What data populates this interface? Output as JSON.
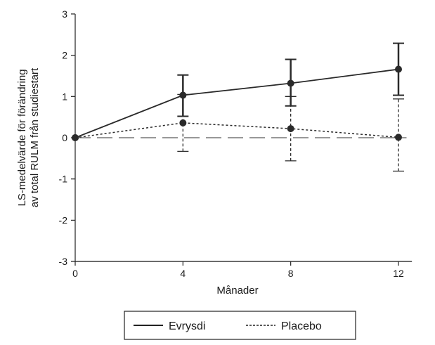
{
  "chart_data": {
    "type": "line",
    "xlabel": "Månader",
    "ylabel_lines": [
      "LS-medelvärde för förändring",
      "av total RULM från studiestart"
    ],
    "x_ticks": [
      0,
      4,
      8,
      12
    ],
    "y_ticks": [
      3,
      2,
      1,
      0,
      -1,
      -2,
      -3
    ],
    "xlim": [
      0,
      12.5
    ],
    "ylim": [
      -3,
      3
    ],
    "grid": false,
    "reference_line": 0,
    "legend_placement": "bottom",
    "series": [
      {
        "name": "Evrysdi",
        "style": "solid",
        "x": [
          0,
          4,
          8,
          12
        ],
        "y": [
          0,
          1.03,
          1.32,
          1.66
        ],
        "err_low": [
          null,
          0.52,
          0.77,
          1.03
        ],
        "err_high": [
          null,
          1.52,
          1.9,
          2.29
        ]
      },
      {
        "name": "Placebo",
        "style": "dotted",
        "x": [
          0,
          4,
          8,
          12
        ],
        "y": [
          0,
          0.36,
          0.22,
          0.01
        ],
        "err_low": [
          null,
          -0.33,
          -0.56,
          -0.81
        ],
        "err_high": [
          null,
          1.05,
          1.0,
          0.94
        ]
      }
    ],
    "colors": {
      "line": "#2a2a2a",
      "reference": "#777777"
    }
  }
}
